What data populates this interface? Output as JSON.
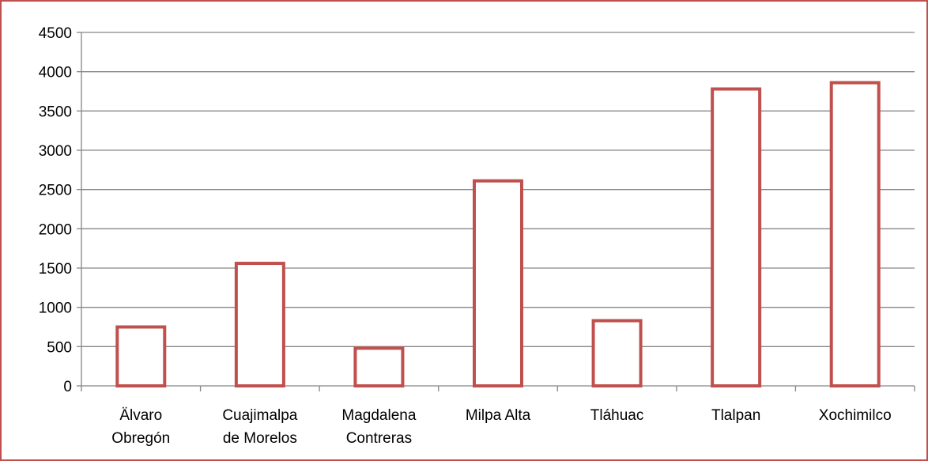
{
  "chart_data": {
    "type": "bar",
    "title": "",
    "xlabel": "",
    "ylabel": "",
    "categories": [
      [
        "Älvaro",
        "Obregón"
      ],
      [
        "Cuajimalpa",
        "de Morelos"
      ],
      [
        "Magdalena",
        "Contreras"
      ],
      [
        "Milpa Alta"
      ],
      [
        "Tláhuac"
      ],
      [
        "Tlalpan"
      ],
      [
        "Xochimilco"
      ]
    ],
    "values": [
      750,
      1560,
      480,
      2610,
      830,
      3780,
      3860
    ],
    "ylim": [
      0,
      4500
    ],
    "yticks": [
      0,
      500,
      1000,
      1500,
      2000,
      2500,
      3000,
      3500,
      4000,
      4500
    ],
    "grid": true,
    "legend": "none",
    "colors": {
      "bar_stroke": "#c0504d",
      "bar_fill": "#ffffff",
      "grid": "#868686",
      "frame": "#c0504d"
    }
  }
}
